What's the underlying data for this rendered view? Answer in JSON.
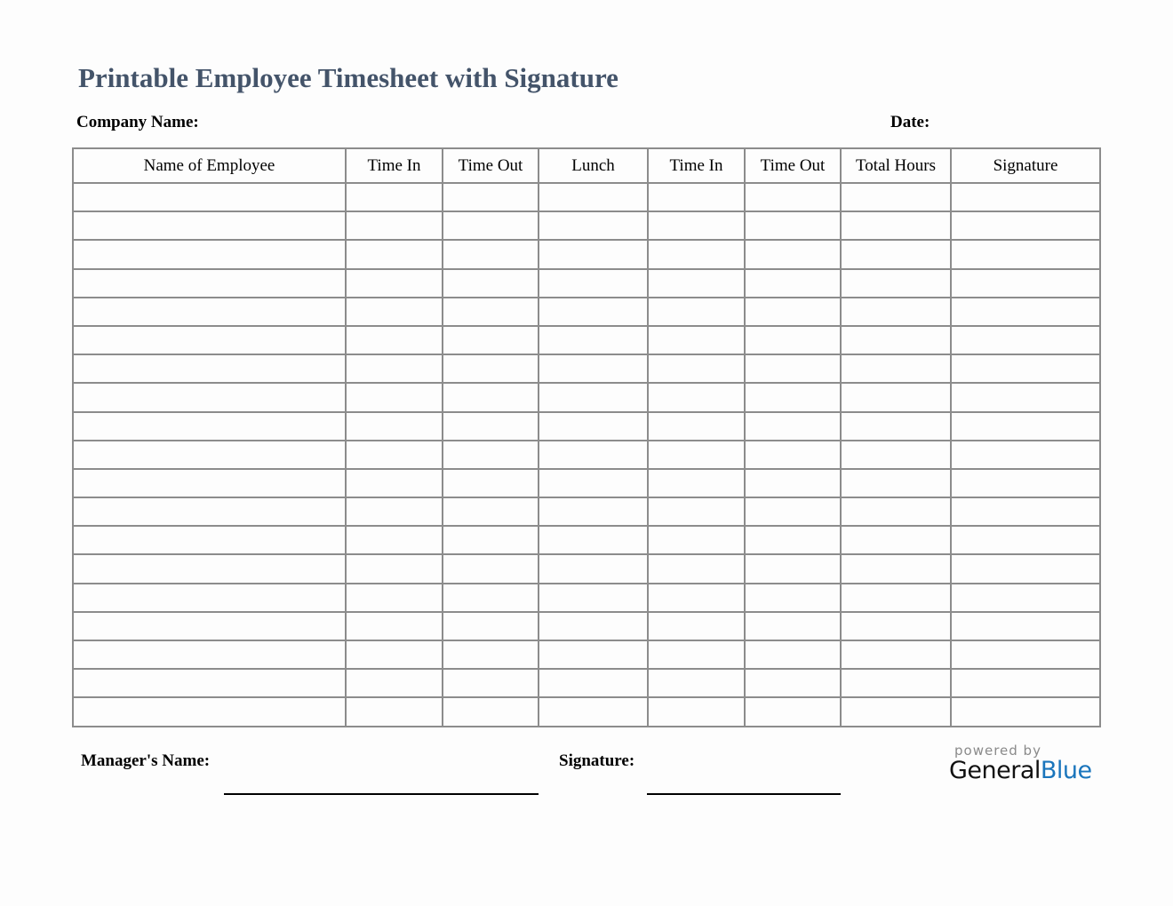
{
  "title": "Printable Employee Timesheet with Signature",
  "company_label": "Company Name:",
  "date_label": "Date:",
  "columns": [
    "Name of Employee",
    "Time In",
    "Time Out",
    "Lunch",
    "Time In",
    "Time Out",
    "Total Hours",
    "Signature"
  ],
  "footer": {
    "manager_label": "Manager's Name:",
    "signature_label": "Signature:"
  },
  "logo": {
    "powered": "powered by",
    "general": "General",
    "blue": "Blue",
    "blue_color": "#1a75bc"
  },
  "colors": {
    "title": "#44546a",
    "border": "#8c8c8c"
  }
}
